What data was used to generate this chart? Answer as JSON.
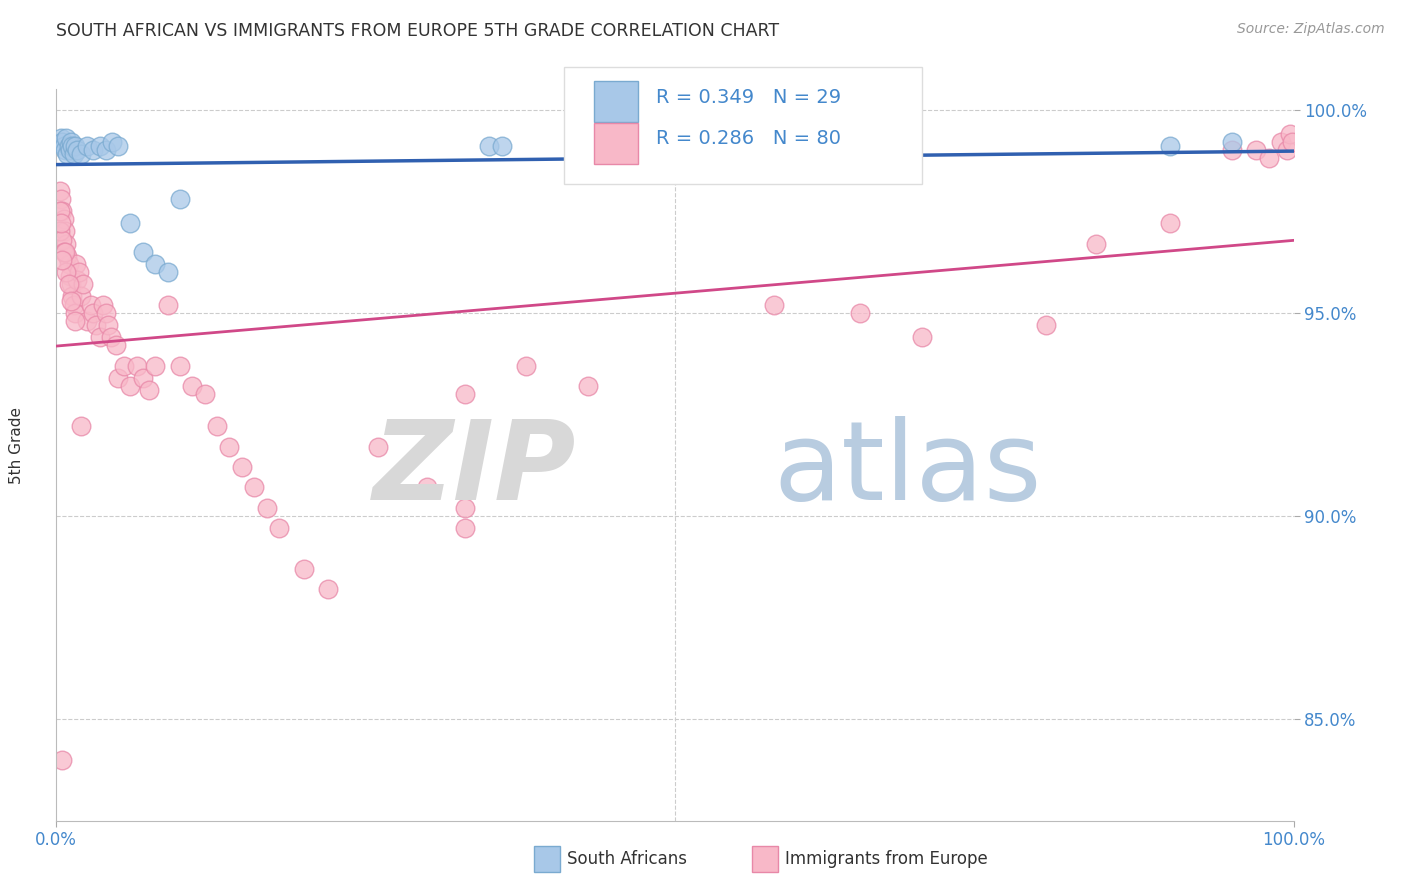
{
  "title": "SOUTH AFRICAN VS IMMIGRANTS FROM EUROPE 5TH GRADE CORRELATION CHART",
  "source": "Source: ZipAtlas.com",
  "ylabel": "5th Grade",
  "legend_r_blue": "R = 0.349",
  "legend_n_blue": "N = 29",
  "legend_r_pink": "R = 0.286",
  "legend_n_pink": "N = 80",
  "blue_scatter_color": "#a8c8e8",
  "blue_edge_color": "#7aaad0",
  "pink_scatter_color": "#f8b8c8",
  "pink_edge_color": "#e888a8",
  "blue_line_color": "#3060b0",
  "pink_line_color": "#d04888",
  "grid_color": "#cccccc",
  "ytick_color": "#4488cc",
  "xtick_color": "#4488cc",
  "title_color": "#333333",
  "source_color": "#999999",
  "background_color": "#ffffff",
  "blue_scatter_x": [
    0.004,
    0.005,
    0.006,
    0.007,
    0.008,
    0.009,
    0.01,
    0.011,
    0.012,
    0.013,
    0.014,
    0.015,
    0.017,
    0.02,
    0.025,
    0.03,
    0.035,
    0.04,
    0.045,
    0.05,
    0.06,
    0.07,
    0.08,
    0.09,
    0.1,
    0.35,
    0.36,
    0.9,
    0.95
  ],
  "blue_scatter_y": [
    0.993,
    0.992,
    0.991,
    0.99,
    0.993,
    0.989,
    0.991,
    0.99,
    0.992,
    0.991,
    0.989,
    0.991,
    0.99,
    0.989,
    0.991,
    0.99,
    0.991,
    0.99,
    0.992,
    0.991,
    0.972,
    0.965,
    0.962,
    0.96,
    0.978,
    0.991,
    0.991,
    0.991,
    0.992
  ],
  "pink_scatter_x": [
    0.003,
    0.004,
    0.005,
    0.006,
    0.007,
    0.008,
    0.009,
    0.01,
    0.011,
    0.012,
    0.013,
    0.014,
    0.015,
    0.016,
    0.017,
    0.018,
    0.02,
    0.022,
    0.025,
    0.028,
    0.03,
    0.032,
    0.035,
    0.038,
    0.04,
    0.042,
    0.044,
    0.048,
    0.05,
    0.055,
    0.06,
    0.065,
    0.07,
    0.075,
    0.08,
    0.09,
    0.1,
    0.11,
    0.12,
    0.13,
    0.14,
    0.15,
    0.16,
    0.17,
    0.18,
    0.2,
    0.22,
    0.26,
    0.3,
    0.33,
    0.38,
    0.43,
    0.58,
    0.65,
    0.7,
    0.8,
    0.9,
    0.95,
    0.97,
    0.98,
    0.99,
    0.995,
    0.997,
    0.999,
    0.003,
    0.005,
    0.006,
    0.008,
    0.01,
    0.012,
    0.015,
    0.02,
    0.33,
    0.84,
    0.005,
    0.007,
    0.003,
    0.004,
    0.33,
    0.005
  ],
  "pink_scatter_y": [
    0.98,
    0.978,
    0.975,
    0.973,
    0.97,
    0.967,
    0.964,
    0.962,
    0.959,
    0.957,
    0.954,
    0.952,
    0.95,
    0.962,
    0.958,
    0.96,
    0.954,
    0.957,
    0.948,
    0.952,
    0.95,
    0.947,
    0.944,
    0.952,
    0.95,
    0.947,
    0.944,
    0.942,
    0.934,
    0.937,
    0.932,
    0.937,
    0.934,
    0.931,
    0.937,
    0.952,
    0.937,
    0.932,
    0.93,
    0.922,
    0.917,
    0.912,
    0.907,
    0.902,
    0.897,
    0.887,
    0.882,
    0.917,
    0.907,
    0.902,
    0.937,
    0.932,
    0.952,
    0.95,
    0.944,
    0.947,
    0.972,
    0.99,
    0.99,
    0.988,
    0.992,
    0.99,
    0.994,
    0.992,
    0.97,
    0.968,
    0.965,
    0.96,
    0.957,
    0.953,
    0.948,
    0.922,
    0.897,
    0.967,
    0.84,
    0.965,
    0.975,
    0.972,
    0.93,
    0.963
  ],
  "xlim": [
    0.0,
    1.0
  ],
  "ylim": [
    0.825,
    1.005
  ],
  "yticks": [
    0.85,
    0.9,
    0.95,
    1.0
  ],
  "ytick_labels": [
    "85.0%",
    "90.0%",
    "95.0%",
    "100.0%"
  ],
  "xtick_labels_bottom": [
    "0.0%",
    "100.0%"
  ],
  "watermark_zip_color": "#d8d8d8",
  "watermark_atlas_color": "#b8cce0"
}
